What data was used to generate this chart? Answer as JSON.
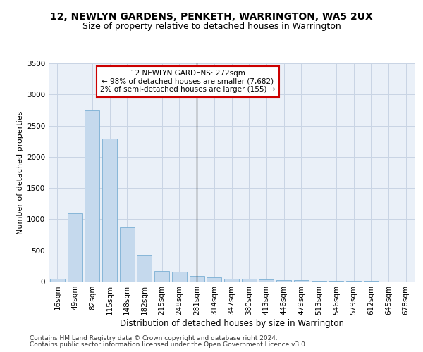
{
  "title": "12, NEWLYN GARDENS, PENKETH, WARRINGTON, WA5 2UX",
  "subtitle": "Size of property relative to detached houses in Warrington",
  "xlabel": "Distribution of detached houses by size in Warrington",
  "ylabel": "Number of detached properties",
  "categories": [
    "16sqm",
    "49sqm",
    "82sqm",
    "115sqm",
    "148sqm",
    "182sqm",
    "215sqm",
    "248sqm",
    "281sqm",
    "314sqm",
    "347sqm",
    "380sqm",
    "413sqm",
    "446sqm",
    "479sqm",
    "513sqm",
    "546sqm",
    "579sqm",
    "612sqm",
    "645sqm",
    "678sqm"
  ],
  "values": [
    50,
    1100,
    2750,
    2290,
    875,
    430,
    170,
    160,
    90,
    65,
    50,
    45,
    35,
    25,
    20,
    12,
    6,
    6,
    6,
    5,
    5
  ],
  "bar_color": "#c5d9ed",
  "bar_edge_color": "#7aafd4",
  "marker_index": 8,
  "marker_label": "12 NEWLYN GARDENS: 272sqm",
  "annotation_line1": "← 98% of detached houses are smaller (7,682)",
  "annotation_line2": "2% of semi-detached houses are larger (155) →",
  "annotation_box_facecolor": "#ffffff",
  "annotation_box_edgecolor": "#cc0000",
  "vline_color": "#444444",
  "ylim": [
    0,
    3500
  ],
  "yticks": [
    0,
    500,
    1000,
    1500,
    2000,
    2500,
    3000,
    3500
  ],
  "grid_color": "#c8d4e4",
  "background_color": "#eaf0f8",
  "footer_line1": "Contains HM Land Registry data © Crown copyright and database right 2024.",
  "footer_line2": "Contains public sector information licensed under the Open Government Licence v3.0.",
  "title_fontsize": 10,
  "subtitle_fontsize": 9,
  "axis_label_fontsize": 8,
  "tick_fontsize": 7.5,
  "annotation_fontsize": 7.5,
  "footer_fontsize": 6.5
}
